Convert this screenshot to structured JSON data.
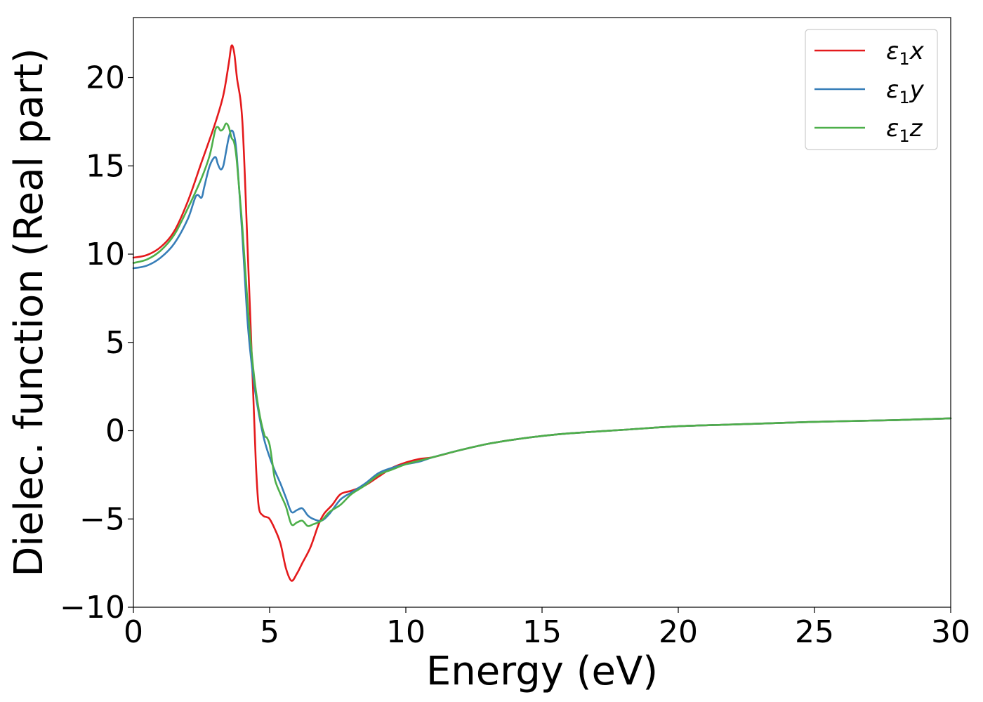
{
  "chart_data": {
    "type": "line",
    "title": "",
    "xlabel": "Energy (eV)",
    "ylabel": "Dielec. function (Real part)",
    "xlim": [
      0,
      30
    ],
    "ylim": [
      -10,
      23.4
    ],
    "xticks": [
      0,
      5,
      10,
      15,
      20,
      25,
      30
    ],
    "yticks": [
      -10,
      -5,
      0,
      5,
      10,
      15,
      20
    ],
    "xtick_labels": [
      "0",
      "5",
      "10",
      "15",
      "20",
      "25",
      "30"
    ],
    "ytick_labels": [
      "−10",
      "−5",
      "0",
      "5",
      "10",
      "15",
      "20"
    ],
    "grid": false,
    "legend_placement": "top-right",
    "series": [
      {
        "name": "ε₁x",
        "sym": "ε",
        "sub": "1",
        "var": "x",
        "color": "#e41a1c",
        "x": [
          0,
          0.5,
          1.0,
          1.5,
          2.0,
          2.5,
          3.0,
          3.3,
          3.5,
          3.6,
          3.7,
          3.8,
          4.0,
          4.2,
          4.4,
          4.5,
          4.6,
          4.75,
          4.9,
          5.0,
          5.2,
          5.4,
          5.6,
          5.8,
          6.0,
          6.2,
          6.5,
          6.8,
          7.0,
          7.3,
          7.6,
          8.0,
          8.5,
          9.0,
          9.5,
          10.0,
          10.5,
          11.0,
          12.0,
          13.0,
          14.0,
          15.0,
          16.0,
          18.0,
          20.0,
          22.0,
          25.0,
          28.0,
          30.0
        ],
        "y": [
          9.8,
          9.95,
          10.4,
          11.3,
          13.0,
          15.2,
          17.4,
          19.0,
          20.8,
          21.8,
          21.4,
          20.0,
          17.5,
          10.0,
          2.0,
          -2.0,
          -4.3,
          -4.8,
          -4.9,
          -5.0,
          -5.6,
          -6.4,
          -7.8,
          -8.5,
          -8.1,
          -7.5,
          -6.6,
          -5.3,
          -4.7,
          -4.2,
          -3.6,
          -3.4,
          -3.1,
          -2.6,
          -2.1,
          -1.8,
          -1.6,
          -1.5,
          -1.1,
          -0.75,
          -0.5,
          -0.3,
          -0.15,
          0.05,
          0.25,
          0.35,
          0.5,
          0.6,
          0.7
        ]
      },
      {
        "name": "ε₁y",
        "sym": "ε",
        "sub": "1",
        "var": "y",
        "color": "#377eb8",
        "x": [
          0,
          0.5,
          1.0,
          1.5,
          2.0,
          2.3,
          2.5,
          2.6,
          2.8,
          3.0,
          3.1,
          3.2,
          3.3,
          3.4,
          3.5,
          3.6,
          3.7,
          3.8,
          4.0,
          4.2,
          4.4,
          4.6,
          4.8,
          5.0,
          5.2,
          5.4,
          5.6,
          5.8,
          6.0,
          6.2,
          6.4,
          6.6,
          6.9,
          7.2,
          7.6,
          8.0,
          8.5,
          9.0,
          9.5,
          10.0,
          10.5,
          11.0,
          12.0,
          13.0,
          14.0,
          15.0,
          16.0,
          18.0,
          20.0,
          22.0,
          25.0,
          28.0,
          30.0
        ],
        "y": [
          9.2,
          9.35,
          9.8,
          10.6,
          12.0,
          13.3,
          13.2,
          13.8,
          15.0,
          15.5,
          15.1,
          14.8,
          15.0,
          15.8,
          16.6,
          17.0,
          16.7,
          15.5,
          11.0,
          6.0,
          3.0,
          1.0,
          -0.5,
          -1.5,
          -2.3,
          -3.0,
          -3.8,
          -4.6,
          -4.5,
          -4.4,
          -4.8,
          -5.0,
          -5.1,
          -4.7,
          -3.9,
          -3.5,
          -3.0,
          -2.4,
          -2.1,
          -1.9,
          -1.75,
          -1.5,
          -1.1,
          -0.75,
          -0.5,
          -0.3,
          -0.15,
          0.05,
          0.25,
          0.35,
          0.5,
          0.6,
          0.7
        ]
      },
      {
        "name": "ε₁z",
        "sym": "ε",
        "sub": "1",
        "var": "z",
        "color": "#4daf4a",
        "x": [
          0,
          0.5,
          1.0,
          1.5,
          2.0,
          2.5,
          2.8,
          3.0,
          3.1,
          3.2,
          3.3,
          3.4,
          3.5,
          3.6,
          3.7,
          3.8,
          4.0,
          4.2,
          4.4,
          4.6,
          4.8,
          4.9,
          5.0,
          5.1,
          5.2,
          5.4,
          5.6,
          5.8,
          6.0,
          6.2,
          6.4,
          6.6,
          6.9,
          7.2,
          7.6,
          8.0,
          8.5,
          9.0,
          9.5,
          10.0,
          10.5,
          11.0,
          12.0,
          13.0,
          14.0,
          15.0,
          16.0,
          18.0,
          20.0,
          22.0,
          25.0,
          28.0,
          30.0
        ],
        "y": [
          9.5,
          9.7,
          10.2,
          11.1,
          12.6,
          14.3,
          15.6,
          17.0,
          17.2,
          17.0,
          17.1,
          17.4,
          17.2,
          16.6,
          16.3,
          15.2,
          11.5,
          7.0,
          3.5,
          1.2,
          -0.2,
          -0.4,
          -0.8,
          -1.8,
          -2.8,
          -3.6,
          -4.3,
          -5.3,
          -5.2,
          -5.1,
          -5.4,
          -5.3,
          -5.1,
          -4.6,
          -4.2,
          -3.6,
          -3.1,
          -2.5,
          -2.2,
          -1.9,
          -1.7,
          -1.5,
          -1.1,
          -0.75,
          -0.5,
          -0.3,
          -0.15,
          0.05,
          0.25,
          0.35,
          0.5,
          0.6,
          0.7
        ]
      }
    ]
  }
}
